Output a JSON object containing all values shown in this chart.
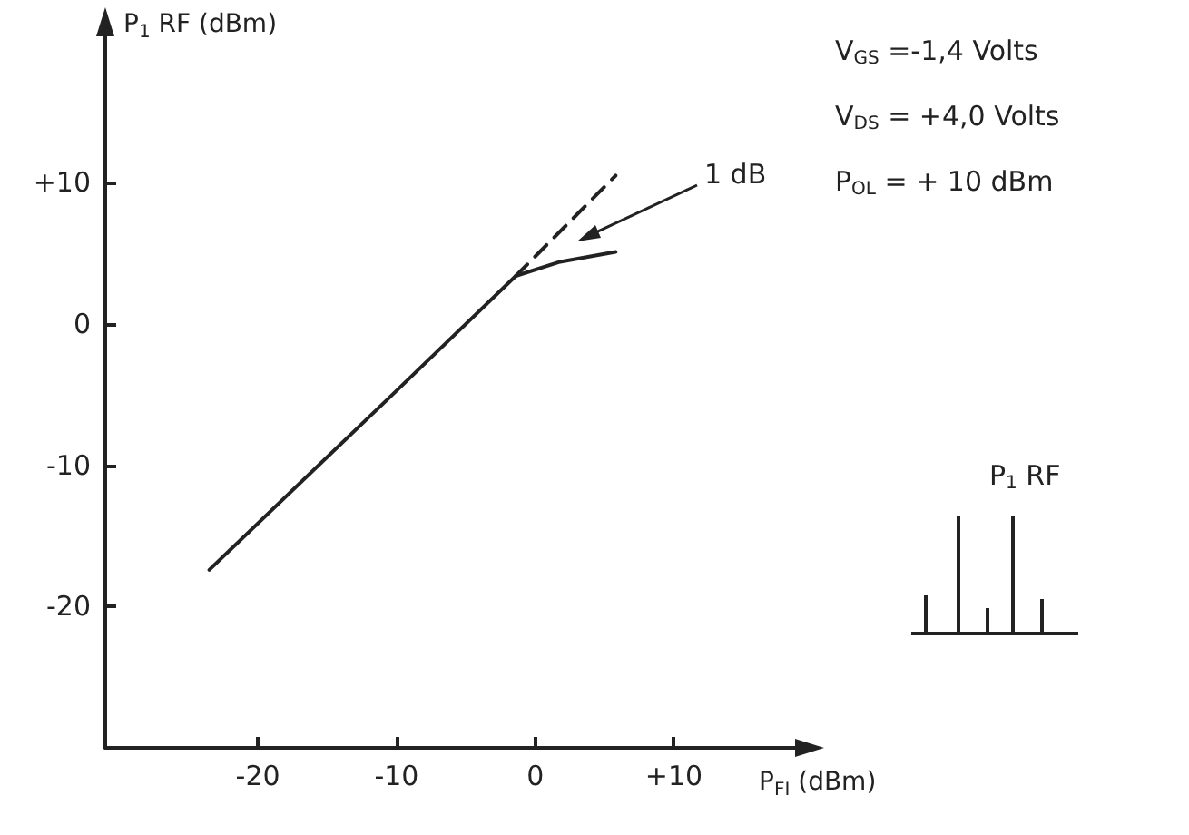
{
  "chart_data": {
    "type": "line",
    "xlabel": "P$_{FI}$ (dBm)",
    "ylabel": "P$_{1}$ RF (dBm)",
    "xlim": [
      -31,
      19
    ],
    "ylim": [
      -30,
      21
    ],
    "xticks": [
      -20,
      -10,
      0,
      {
        "value": 10,
        "label": "+10"
      }
    ],
    "yticks": [
      -20,
      -10,
      0,
      {
        "value": 10,
        "label": "+10"
      }
    ],
    "marker": "none",
    "series": [
      {
        "color": "#222222",
        "line_style": "solid",
        "x": [
          -23.5,
          -10.4,
          -1.4,
          1.8,
          5.8
        ],
        "values": [
          -17.4,
          -5.1,
          3.4,
          4.4,
          5.1
        ]
      },
      {
        "color": "#222222",
        "line_style": "dashed",
        "x": [
          -1.4,
          5.8
        ],
        "values": [
          3.4,
          10.5
        ]
      }
    ],
    "annotations": [
      "1 dB",
      "V$_{GS}$ =-1,4 Volts",
      "V$_{DS}$ = +4,0 Volts",
      "P$_{OL}$ = + 10 dBm",
      "P$_{1}$ RF"
    ]
  }
}
